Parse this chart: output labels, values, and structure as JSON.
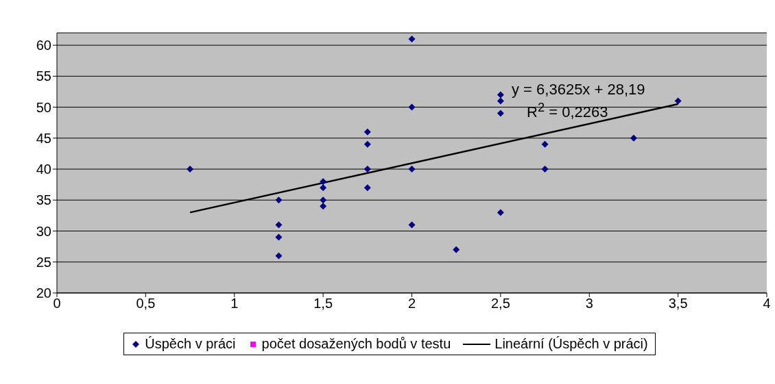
{
  "chart_data": {
    "type": "scatter",
    "xlim": [
      0,
      4
    ],
    "ylim": [
      20,
      62
    ],
    "xticks": [
      0,
      {
        "value": 0.5,
        "label": "0,5"
      },
      1,
      {
        "value": 1.5,
        "label": "1,5"
      },
      2,
      {
        "value": 2.5,
        "label": "2,5"
      },
      3,
      {
        "value": 3.5,
        "label": "3,5"
      },
      4
    ],
    "yticks": [
      20,
      25,
      30,
      35,
      40,
      45,
      50,
      55,
      60
    ],
    "grid": "y",
    "legend": "bottom",
    "marker": "diamond",
    "series": [
      {
        "name": "Úspěch v práci",
        "color": "#000080",
        "x": [
          0.75,
          1.25,
          1.25,
          1.25,
          1.25,
          1.5,
          1.5,
          1.5,
          1.5,
          1.75,
          1.75,
          1.75,
          1.75,
          2,
          2,
          2,
          2,
          2.25,
          2.5,
          2.5,
          2.5,
          2.5,
          2.75,
          2.75,
          3.25,
          3.5
        ],
        "values": [
          40,
          35,
          31,
          29,
          26,
          38,
          37,
          35,
          34,
          46,
          44,
          40,
          37,
          61,
          50,
          40,
          31,
          27,
          52,
          51,
          49,
          33,
          44,
          40,
          45,
          51
        ]
      },
      {
        "name": "počet dosažených bodů v testu",
        "type": "scatter",
        "color": "#ff00ff",
        "marker": "square"
      },
      {
        "name": "Lineární (Úspěch v práci)",
        "type": "line",
        "color": "#000000",
        "marker": "none",
        "line_style": "solid",
        "x": [
          0.75,
          3.5
        ],
        "values": [
          33,
          50.5
        ]
      }
    ],
    "annotations": [
      "y = 6,3625x + 28,19",
      "R$^{2}$ = 0,2263"
    ]
  }
}
